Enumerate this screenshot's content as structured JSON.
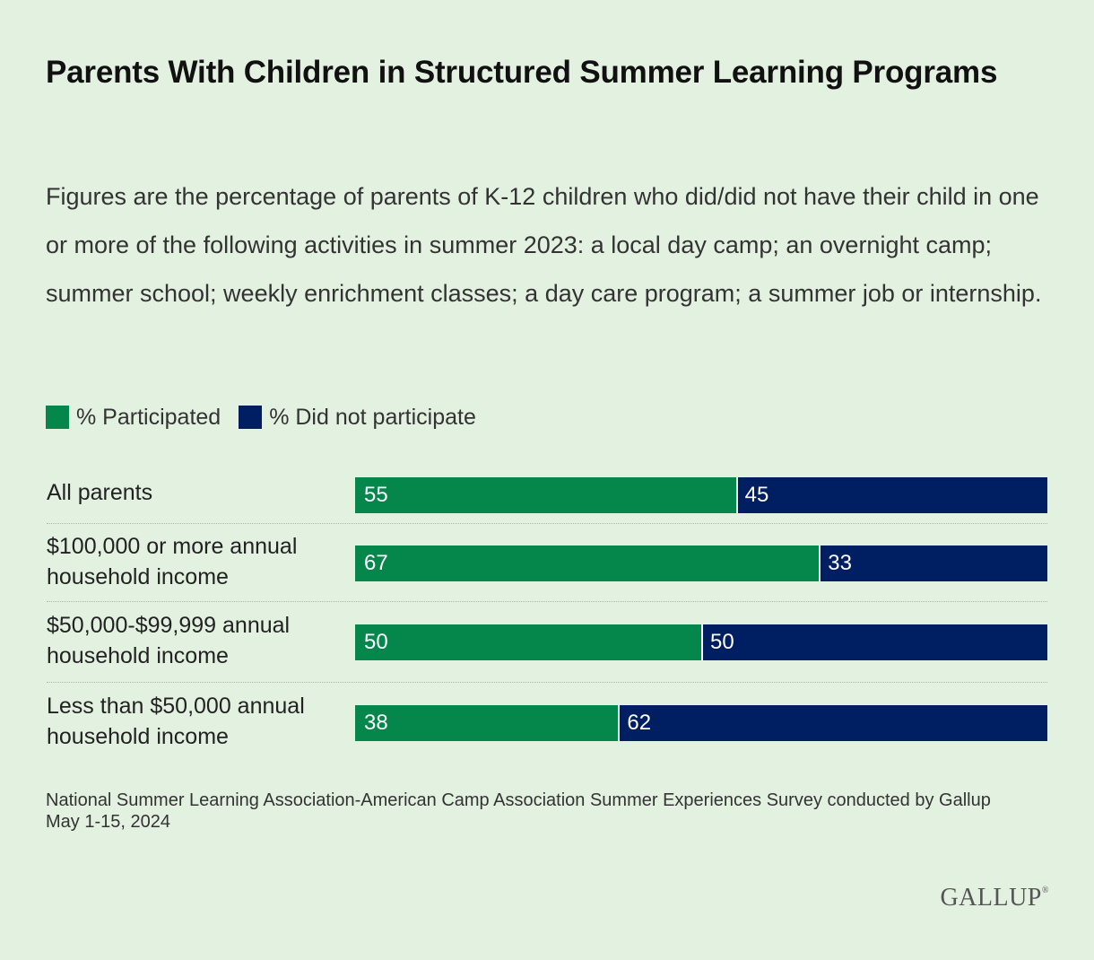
{
  "title": "Parents With Children in Structured Summer Learning Programs",
  "subtitle": "Figures are the percentage of parents of K-12 children who did/did not have their child in one or more of the following activities in summer 2023: a local day camp; an overnight camp; summer school; weekly enrichment classes; a day care program; a summer job or internship.",
  "legend": {
    "participated": "% Participated",
    "did_not": "% Did not participate"
  },
  "colors": {
    "participated": "#05874b",
    "did_not": "#001e62",
    "background": "#e3f1e0"
  },
  "source": {
    "line1": "National Summer Learning Association-American Camp Association Summer Experiences Survey conducted by Gallup",
    "line2": "May 1-15, 2024"
  },
  "logo": "GALLUP",
  "chart_data": {
    "type": "bar",
    "orientation": "horizontal",
    "stacked": true,
    "categories": [
      "All parents",
      "$100,000 or more annual household income",
      "$50,000-$99,999 annual household income",
      "Less than $50,000 annual household income"
    ],
    "series": [
      {
        "name": "% Participated",
        "values": [
          55,
          67,
          50,
          38
        ]
      },
      {
        "name": "% Did not participate",
        "values": [
          45,
          33,
          50,
          62
        ]
      }
    ],
    "xlim": [
      0,
      100
    ],
    "legend_position": "top-left",
    "grid": false
  }
}
